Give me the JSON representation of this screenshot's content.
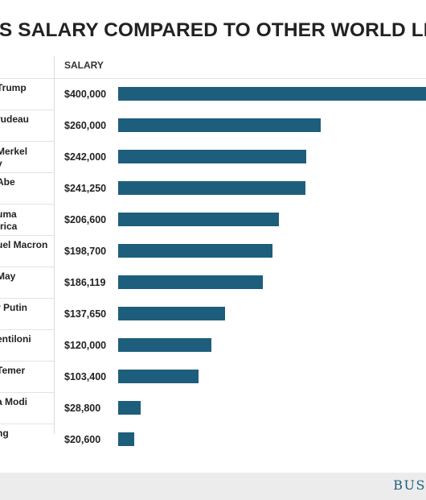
{
  "chart_data": {
    "type": "bar",
    "title": "’S SALARY COMPARED TO OTHER WORLD LE",
    "column_header": "SALARY",
    "categories": [
      [
        "Trump"
      ],
      [
        "rudeau"
      ],
      [
        "Merkel",
        "y"
      ],
      [
        "Abe"
      ],
      [
        "uma",
        "frica"
      ],
      [
        "uel Macron"
      ],
      [
        "May"
      ],
      [
        "r Putin"
      ],
      [
        "entiloni"
      ],
      [
        "Temer"
      ],
      [
        "a Modi"
      ],
      [
        "ng"
      ]
    ],
    "value_labels": [
      "$400,000",
      "$260,000",
      "$242,000",
      "$241,250",
      "$206,600",
      "$198,700",
      "$186,119",
      "$137,650",
      "$120,000",
      "$103,400",
      "$28,800",
      "$20,600"
    ],
    "values": [
      400000,
      260000,
      242000,
      241250,
      206600,
      198700,
      186119,
      137650,
      120000,
      103400,
      28800,
      20600
    ],
    "bar_color": "#1d5e7c"
  },
  "footer": {
    "logo_text": "BUS"
  }
}
